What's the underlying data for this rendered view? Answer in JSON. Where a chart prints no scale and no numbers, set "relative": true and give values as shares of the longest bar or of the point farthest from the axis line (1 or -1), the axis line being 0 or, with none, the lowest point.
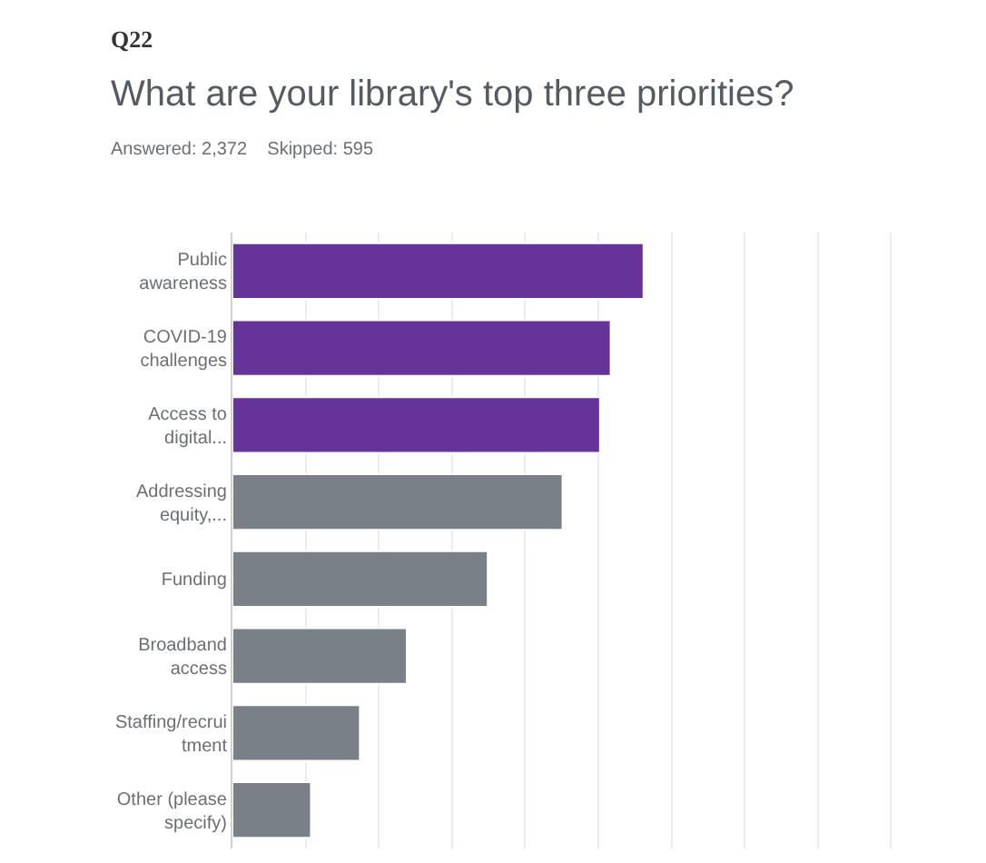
{
  "chart_data": {
    "type": "bar",
    "orientation": "horizontal",
    "relative": true,
    "title": "What are your library's top three priorities?",
    "subtitle": "Answered: 2,372    Skipped: 595",
    "annotations": [
      "Q22"
    ],
    "categories": [
      "Public\nawareness",
      "COVID-19\nchallenges",
      "Access to\ndigital...",
      "Addressing\nequity,...",
      "Funding",
      "Broadband\naccess",
      "Staffing/recrui\ntment",
      "Other (please\nspecify)"
    ],
    "values": [
      1,
      0.92,
      0.894,
      0.803,
      0.621,
      0.424,
      0.31,
      0.191
    ],
    "colors": [
      "#663399",
      "#663399",
      "#663399",
      "#7a8087",
      "#7a8087",
      "#7a8087",
      "#7a8087",
      "#7a8087"
    ],
    "grid": "x",
    "legend": false
  }
}
